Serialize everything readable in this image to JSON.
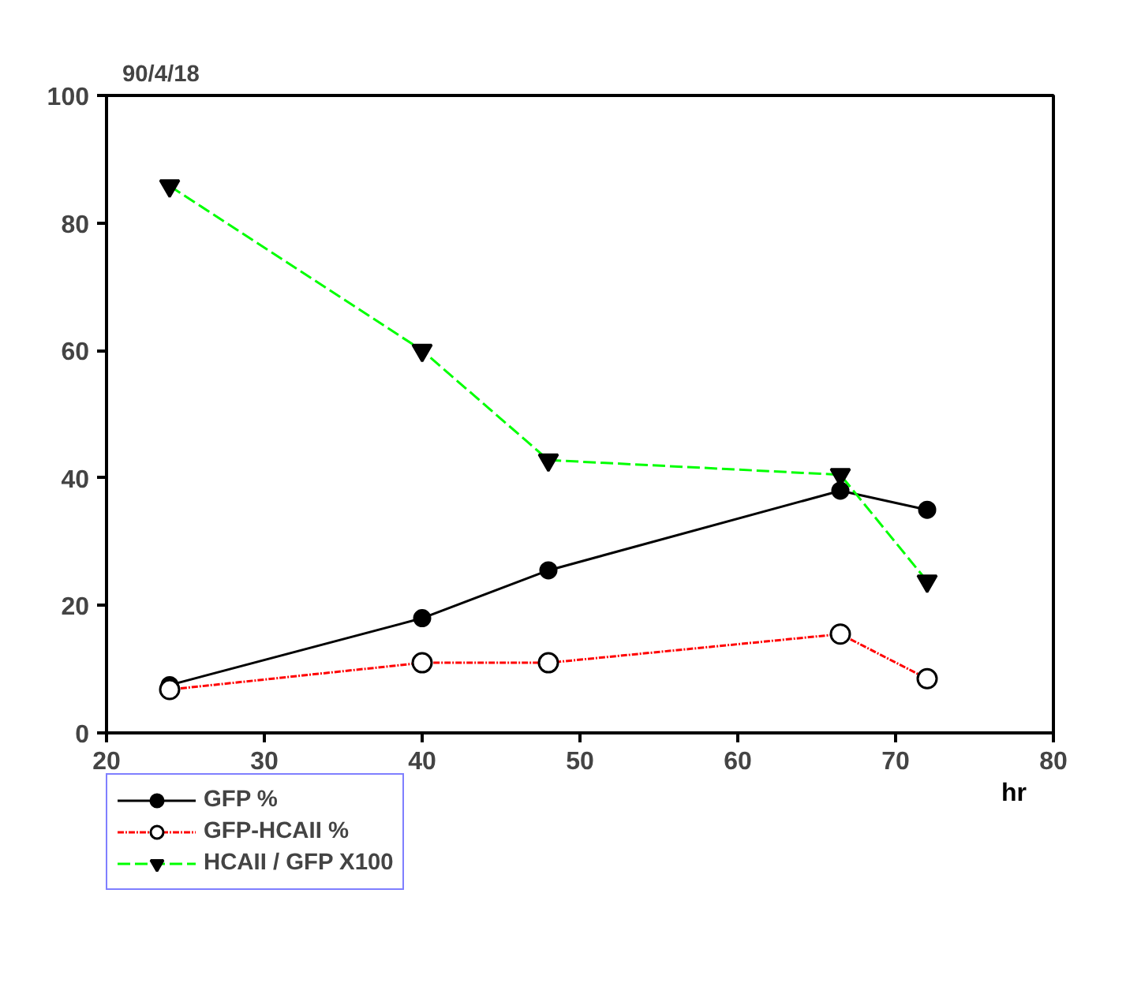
{
  "chart_data": {
    "type": "line",
    "title": "90/4/18",
    "xlabel": "hr",
    "x": [
      24,
      40,
      48,
      66.5,
      72
    ],
    "series": [
      {
        "name": "GFP %",
        "color": "#000000",
        "values": [
          7.5,
          18,
          25.5,
          38,
          35
        ],
        "marker": "circle",
        "line_style": "solid"
      },
      {
        "name": "GFP-HCAII %",
        "color": "#ff0000",
        "values": [
          6.8,
          11,
          11,
          15.5,
          8.5
        ],
        "marker": "circle_open",
        "line_style": "dotted"
      },
      {
        "name": "HCAII / GFP X100",
        "color": "#00ff00",
        "values": [
          85.8,
          60,
          42.8,
          40.5,
          23.8
        ],
        "marker": "triangle",
        "line_style": "dashed"
      }
    ],
    "xlim": [
      20,
      80
    ],
    "ylim": [
      0,
      100
    ],
    "xticks": [
      20,
      30,
      40,
      50,
      60,
      70,
      80
    ],
    "yticks": [
      0,
      20,
      40,
      60,
      80,
      100
    ],
    "grid": false,
    "legend": "bottom left"
  }
}
